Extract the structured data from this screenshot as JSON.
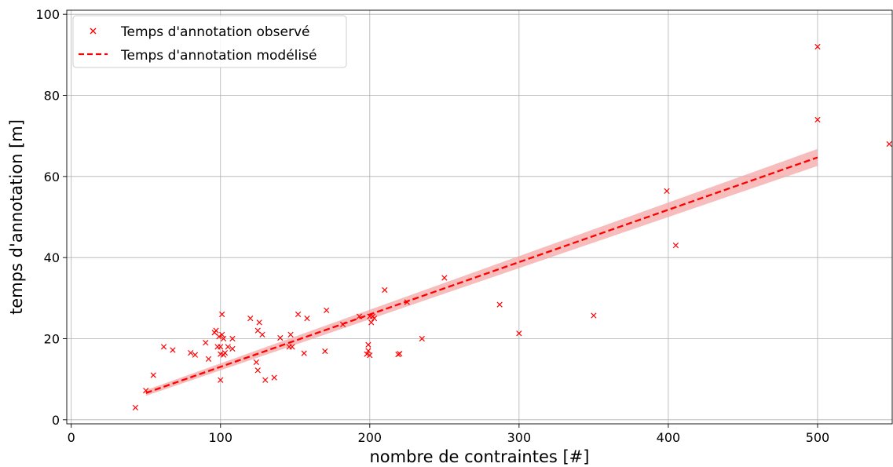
{
  "chart_data": {
    "type": "scatter",
    "xlabel": "nombre de contraintes [#]",
    "ylabel": "temps d'annotation [m]",
    "xlim": [
      -3,
      550
    ],
    "ylim": [
      -1,
      101
    ],
    "xticks": [
      0,
      100,
      200,
      300,
      400,
      500
    ],
    "yticks": [
      0,
      20,
      40,
      60,
      80,
      100
    ],
    "grid": true,
    "legend_position": "top-left",
    "colors": {
      "accent": "#ff0000",
      "band": "#f4a6a6",
      "grid": "#b0b0b0"
    },
    "series": [
      {
        "name": "Temps d'annotation observé",
        "type": "scatter",
        "marker": "x",
        "points": [
          [
            43,
            3
          ],
          [
            50,
            7.2
          ],
          [
            55,
            11
          ],
          [
            62,
            18
          ],
          [
            68,
            17.2
          ],
          [
            80,
            16.5
          ],
          [
            83,
            16
          ],
          [
            90,
            19
          ],
          [
            92,
            15
          ],
          [
            96,
            21.5
          ],
          [
            97,
            22
          ],
          [
            98,
            18
          ],
          [
            99,
            20.5
          ],
          [
            100,
            9.8
          ],
          [
            100,
            16.2
          ],
          [
            100,
            18
          ],
          [
            101,
            26
          ],
          [
            101,
            21
          ],
          [
            102,
            16
          ],
          [
            102,
            20
          ],
          [
            103,
            16.5
          ],
          [
            105,
            18
          ],
          [
            108,
            17.5
          ],
          [
            108,
            20
          ],
          [
            120,
            25
          ],
          [
            124,
            14.2
          ],
          [
            125,
            12.2
          ],
          [
            125,
            22
          ],
          [
            126,
            24
          ],
          [
            128,
            21
          ],
          [
            130,
            9.8
          ],
          [
            136,
            10.4
          ],
          [
            140,
            20.2
          ],
          [
            146,
            18
          ],
          [
            147,
            21
          ],
          [
            148,
            18
          ],
          [
            152,
            26
          ],
          [
            156,
            16.4
          ],
          [
            158,
            25
          ],
          [
            170,
            16.9
          ],
          [
            171,
            27
          ],
          [
            182,
            23.5
          ],
          [
            193,
            25.5
          ],
          [
            198,
            16.2
          ],
          [
            199,
            18.5
          ],
          [
            199,
            17
          ],
          [
            200,
            15.9
          ],
          [
            200,
            25.5
          ],
          [
            201,
            24
          ],
          [
            202,
            25.5
          ],
          [
            203,
            25
          ],
          [
            210,
            32
          ],
          [
            219,
            16.1
          ],
          [
            220,
            16.3
          ],
          [
            225,
            29
          ],
          [
            235,
            20
          ],
          [
            250,
            35
          ],
          [
            287,
            28.4
          ],
          [
            300,
            21.3
          ],
          [
            350,
            25.7
          ],
          [
            399,
            56.4
          ],
          [
            405,
            43
          ],
          [
            500,
            92
          ],
          [
            500,
            74
          ],
          [
            548,
            68
          ]
        ]
      },
      {
        "name": "Temps d'annotation modélisé",
        "type": "line",
        "style": "dashed",
        "x": [
          50,
          500
        ],
        "y": [
          6.6,
          64.7
        ],
        "band_lower": [
          5.9,
          62.6
        ],
        "band_upper": [
          7.3,
          66.8
        ]
      }
    ]
  }
}
